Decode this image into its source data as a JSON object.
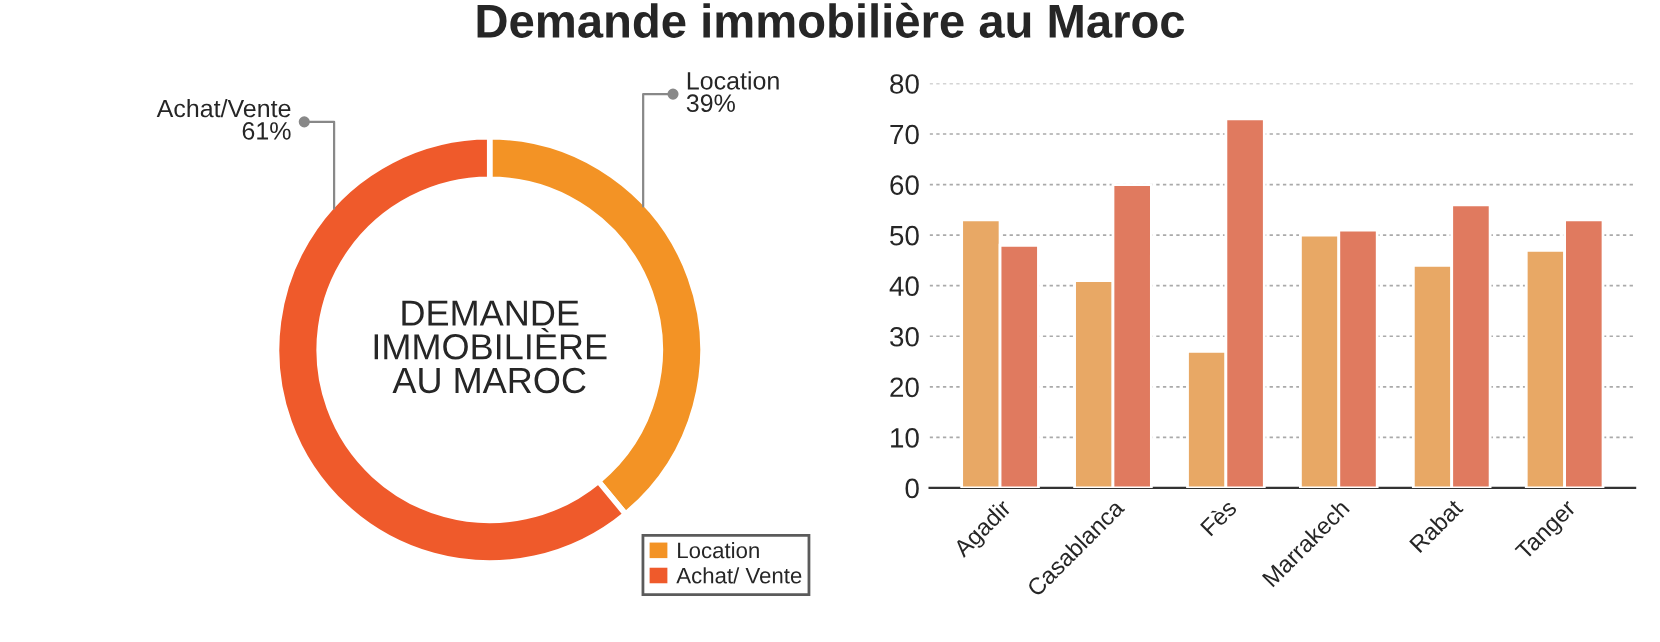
{
  "chart_data": [
    {
      "type": "donut",
      "title": "Demande immobilière au Maroc",
      "annotations": [
        "DEMANDE\nIMMOBILIÈRE\nAU MAROC"
      ],
      "categories": [
        "Location",
        "Achat/ Vente"
      ],
      "values": [
        39,
        61
      ],
      "colors": [
        "#f39325",
        "#ef5a2b"
      ],
      "value_labels": [
        "Location\n39%",
        "Achat/Vente\n61%"
      ],
      "legend": "bottom right"
    },
    {
      "type": "bar",
      "categories": [
        "Agadir",
        "Casablanca",
        "Fès",
        "Marrakech",
        "Rabat",
        "Tanger"
      ],
      "series": [
        {
          "color": "#e8a865",
          "values": [
            53,
            41,
            27,
            50,
            44,
            47
          ]
        },
        {
          "color": "#e07a5f",
          "values": [
            48,
            60,
            73,
            51,
            56,
            53
          ]
        }
      ],
      "ylim": [
        0,
        80
      ],
      "yticks": [
        0,
        10,
        20,
        30,
        40,
        50,
        60,
        70,
        80
      ],
      "grid": "y"
    }
  ]
}
